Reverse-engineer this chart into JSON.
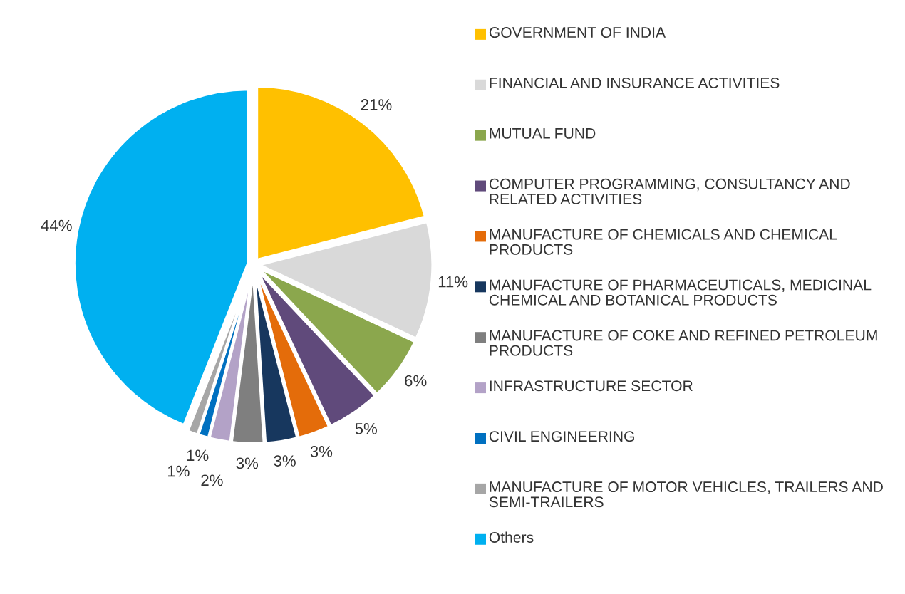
{
  "chart_data": {
    "type": "pie",
    "categories": [
      "GOVERNMENT OF INDIA",
      "FINANCIAL AND INSURANCE ACTIVITIES",
      "MUTUAL FUND",
      "COMPUTER PROGRAMMING, CONSULTANCY AND RELATED ACTIVITIES",
      "MANUFACTURE OF CHEMICALS AND CHEMICAL PRODUCTS",
      "MANUFACTURE OF PHARMACEUTICALS, MEDICINAL CHEMICAL AND BOTANICAL PRODUCTS",
      "MANUFACTURE OF COKE AND REFINED PETROLEUM PRODUCTS",
      "INFRASTRUCTURE SECTOR",
      "CIVIL ENGINEERING",
      "MANUFACTURE OF MOTOR VEHICLES, TRAILERS AND SEMI-TRAILERS",
      "Others"
    ],
    "values": [
      21,
      11,
      6,
      5,
      3,
      3,
      3,
      2,
      1,
      1,
      44
    ],
    "value_labels": [
      "21%",
      "11%",
      "6%",
      "5%",
      "3%",
      "3%",
      "3%",
      "2%",
      "1%",
      "1%",
      "44%"
    ],
    "colors": [
      "#ffc000",
      "#d9d9d9",
      "#8ba74d",
      "#604a7b",
      "#e46c0a",
      "#17375e",
      "#7f7f7f",
      "#b3a2c7",
      "#0070c0",
      "#a6a6a6",
      "#00b0f0"
    ],
    "legend": "right"
  }
}
